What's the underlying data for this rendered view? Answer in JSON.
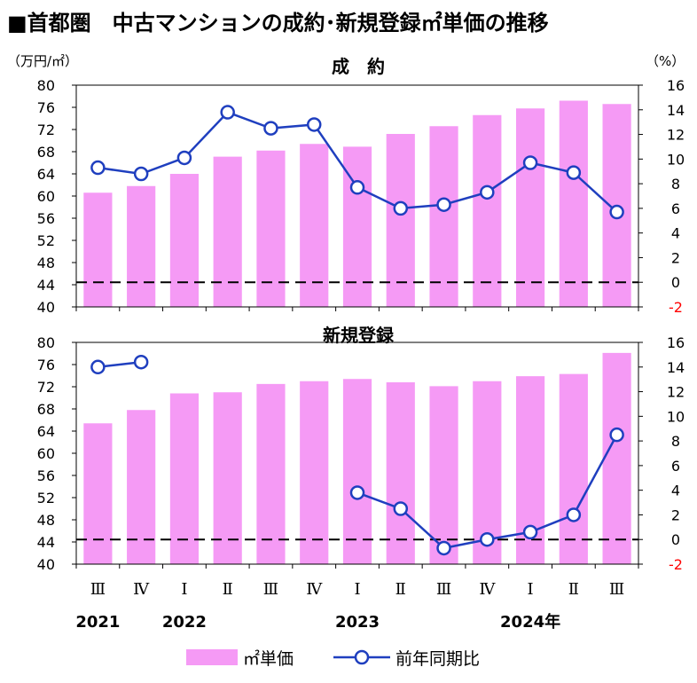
{
  "title": "■首都圏　中古マンションの成約･新規登録㎡単価の推移",
  "unit_left": "（万円/㎡）",
  "unit_right": "（%）",
  "x_axis": {
    "quarters": [
      "Ⅲ",
      "Ⅳ",
      "Ⅰ",
      "Ⅱ",
      "Ⅲ",
      "Ⅳ",
      "Ⅰ",
      "Ⅱ",
      "Ⅲ",
      "Ⅳ",
      "Ⅰ",
      "Ⅱ",
      "Ⅲ"
    ],
    "year_labels": [
      {
        "index": 0,
        "text": "2021"
      },
      {
        "index": 2,
        "text": "2022"
      },
      {
        "index": 6,
        "text": "2023"
      },
      {
        "index": 10,
        "text": "2024年"
      }
    ]
  },
  "legend": {
    "bar_label": "㎡単価",
    "line_label": "前年同期比"
  },
  "colors": {
    "bar": "#f59af5",
    "line": "#1f3fbf",
    "negative_tick": "#ff0000"
  },
  "chart_data": [
    {
      "type": "bar",
      "title": "成　約",
      "categories": [
        "Ⅲ",
        "Ⅳ",
        "Ⅰ",
        "Ⅱ",
        "Ⅲ",
        "Ⅳ",
        "Ⅰ",
        "Ⅱ",
        "Ⅲ",
        "Ⅳ",
        "Ⅰ",
        "Ⅱ",
        "Ⅲ"
      ],
      "ylim": [
        40,
        80
      ],
      "yticks": [
        "80",
        "76",
        "72",
        "68",
        "64",
        "60",
        "56",
        "52",
        "48",
        "44",
        "40"
      ],
      "y2lim": [
        -2,
        16
      ],
      "y2ticks": [
        "16",
        "14",
        "12",
        "10",
        "8",
        "6",
        "4",
        "2",
        "0",
        "-2"
      ],
      "series": [
        {
          "name": "㎡単価",
          "axis": "left",
          "values": [
            60.6,
            61.8,
            64.0,
            67.1,
            68.2,
            69.4,
            68.9,
            71.2,
            72.6,
            74.6,
            75.8,
            77.2,
            76.6
          ]
        },
        {
          "name": "前年同期比",
          "axis": "right",
          "type": "line",
          "values": [
            9.3,
            8.8,
            10.1,
            13.8,
            12.5,
            12.8,
            7.7,
            6.0,
            6.3,
            7.3,
            9.7,
            8.9,
            5.7
          ]
        }
      ]
    },
    {
      "type": "bar",
      "title": "新規登録",
      "categories": [
        "Ⅲ",
        "Ⅳ",
        "Ⅰ",
        "Ⅱ",
        "Ⅲ",
        "Ⅳ",
        "Ⅰ",
        "Ⅱ",
        "Ⅲ",
        "Ⅳ",
        "Ⅰ",
        "Ⅱ",
        "Ⅲ"
      ],
      "ylim": [
        40,
        80
      ],
      "yticks": [
        "80",
        "76",
        "72",
        "68",
        "64",
        "60",
        "56",
        "52",
        "48",
        "44",
        "40"
      ],
      "y2lim": [
        -2,
        16
      ],
      "y2ticks": [
        "16",
        "14",
        "12",
        "10",
        "8",
        "6",
        "4",
        "2",
        "0",
        "-2"
      ],
      "series": [
        {
          "name": "㎡単価",
          "axis": "left",
          "values": [
            65.4,
            67.8,
            70.8,
            71.0,
            72.5,
            73.0,
            73.4,
            72.8,
            72.1,
            73.0,
            73.9,
            74.3,
            78.1
          ]
        },
        {
          "name": "前年同期比",
          "axis": "right",
          "type": "line",
          "values": [
            14.0,
            14.4,
            null,
            null,
            null,
            null,
            3.8,
            2.5,
            -0.7,
            0.0,
            0.6,
            2.0,
            8.5
          ]
        }
      ]
    }
  ]
}
